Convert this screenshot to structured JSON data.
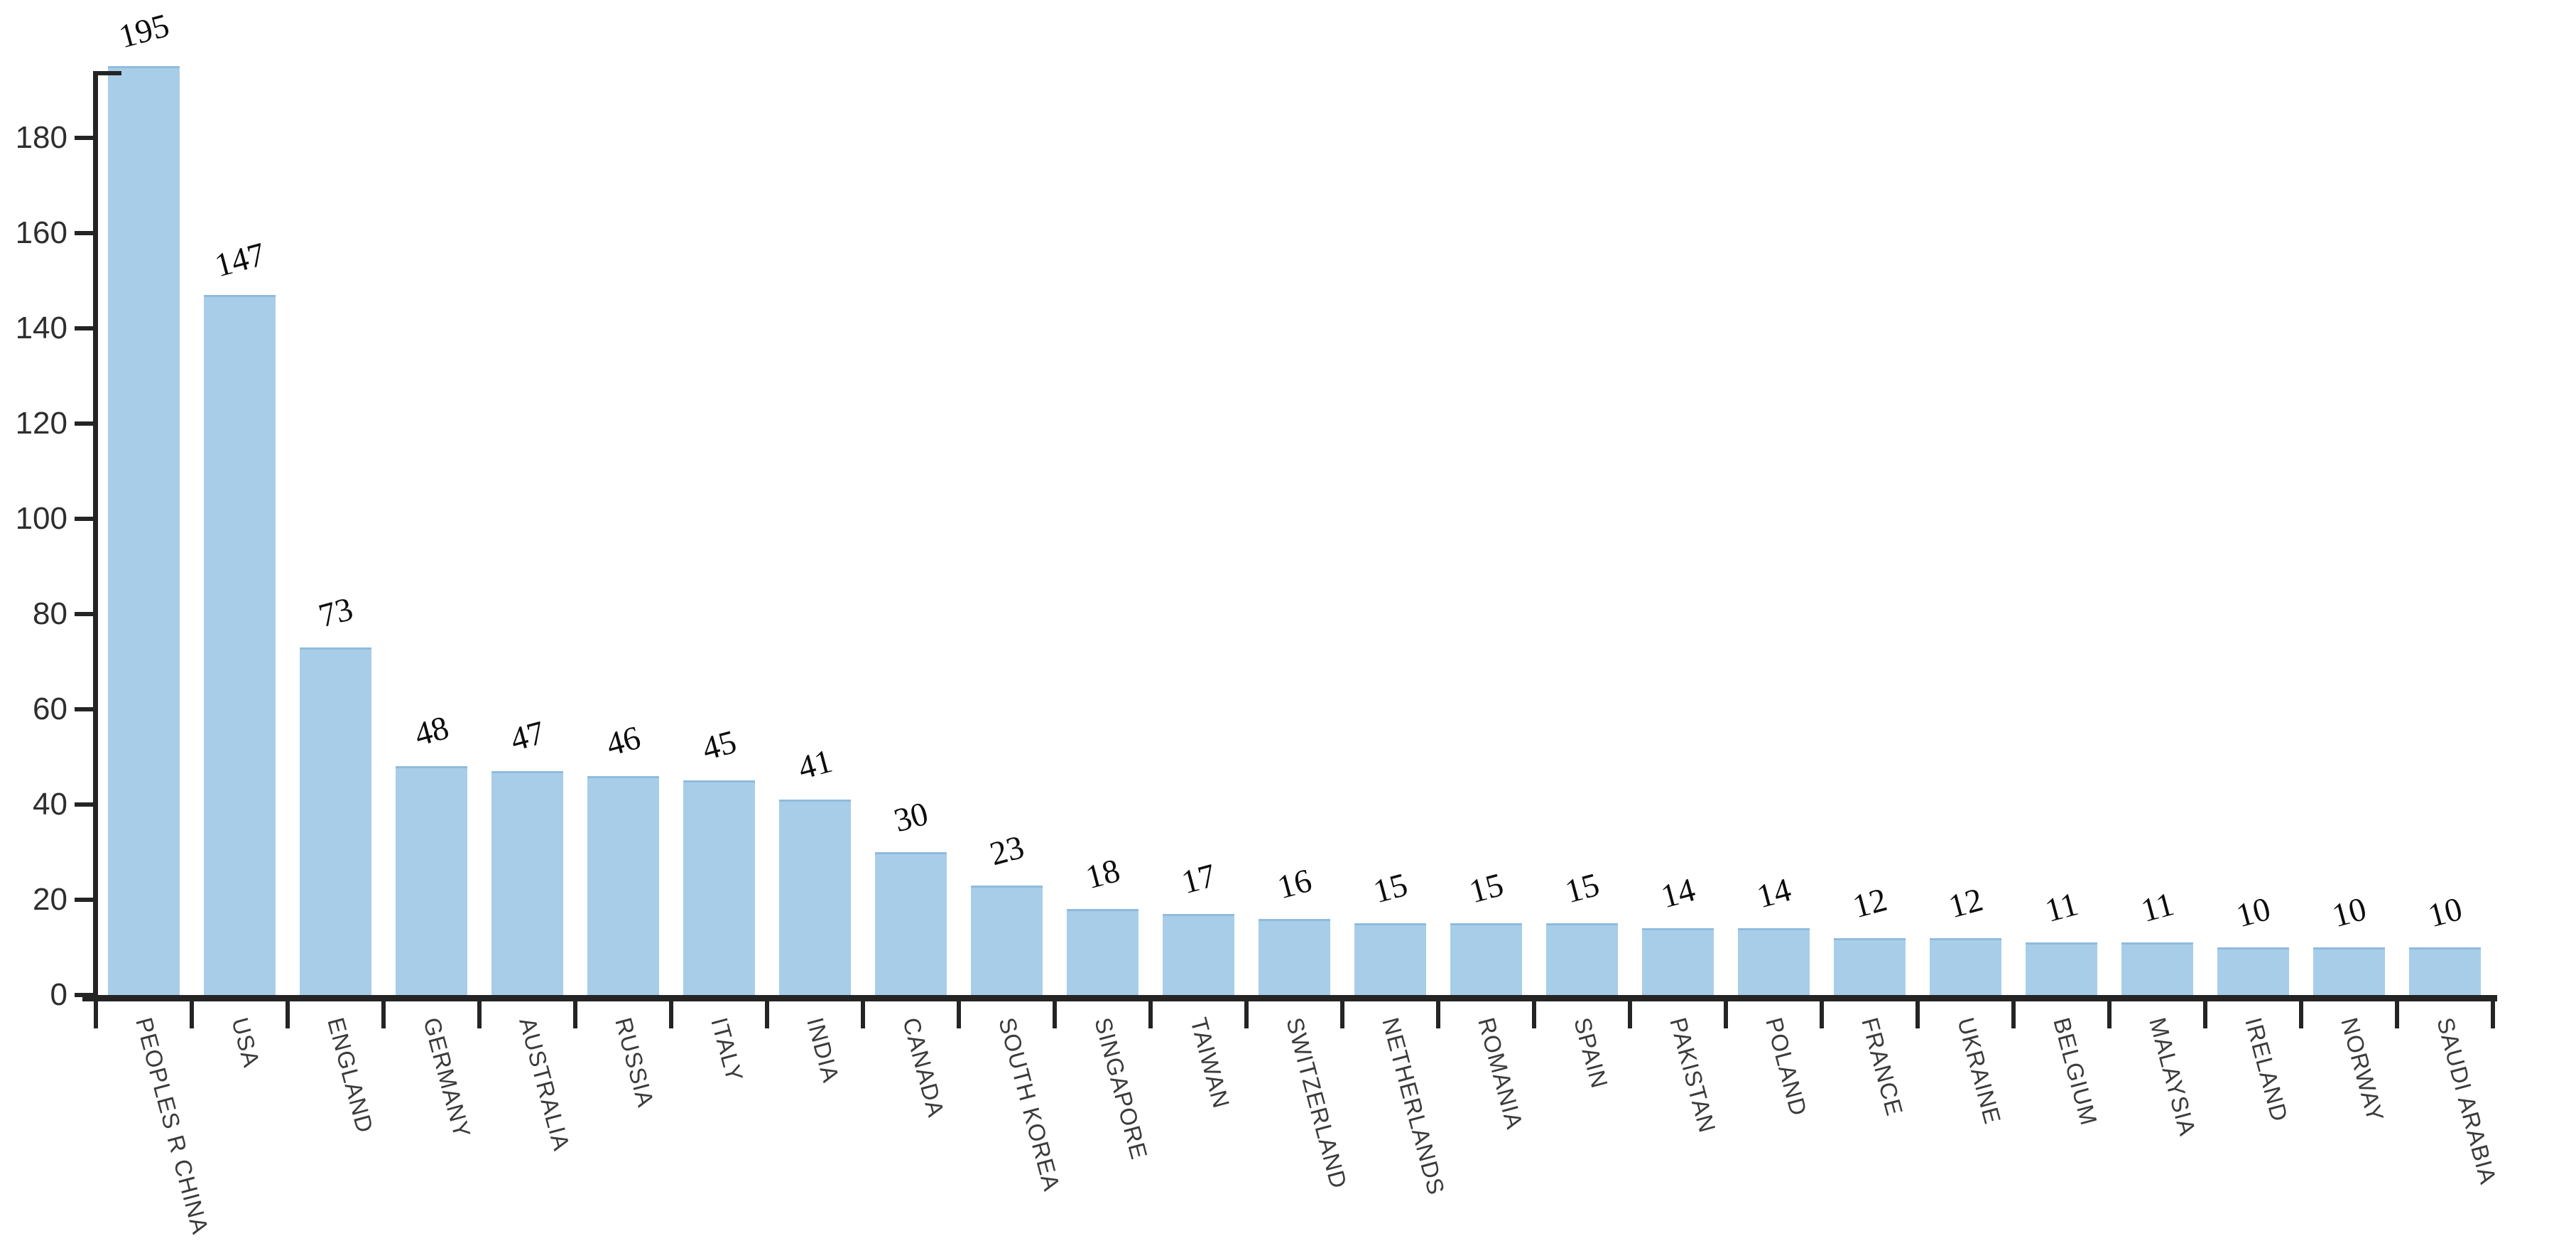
{
  "chart_data": {
    "type": "bar",
    "categories": [
      "PEOPLES R CHINA",
      "USA",
      "ENGLAND",
      "GERMANY",
      "AUSTRALIA",
      "RUSSIA",
      "ITALY",
      "INDIA",
      "CANADA",
      "SOUTH KOREA",
      "SINGAPORE",
      "TAIWAN",
      "SWITZERLAND",
      "NETHERLANDS",
      "ROMANIA",
      "SPAIN",
      "PAKISTAN",
      "POLAND",
      "FRANCE",
      "UKRAINE",
      "BELGIUM",
      "MALAYSIA",
      "IRELAND",
      "NORWAY",
      "SAUDI ARABIA"
    ],
    "values": [
      195,
      147,
      73,
      48,
      47,
      46,
      45,
      41,
      30,
      23,
      18,
      17,
      16,
      15,
      15,
      15,
      14,
      14,
      12,
      12,
      11,
      11,
      10,
      10,
      10
    ],
    "yticks": [
      0,
      20,
      40,
      60,
      80,
      100,
      120,
      140,
      160,
      180
    ],
    "ylim": [
      0,
      195
    ],
    "xlabel": "",
    "ylabel": "",
    "grid": false,
    "legend": null,
    "bar_color": "#a8cde9",
    "bar_edge_color": "#8fbbdd",
    "axis_color": "#242424",
    "data_label_color": "#0d0d0d",
    "tick_label_color": "#2e2e2e",
    "category_label_color": "#3b3b3b",
    "background_color": "#ffffff"
  }
}
